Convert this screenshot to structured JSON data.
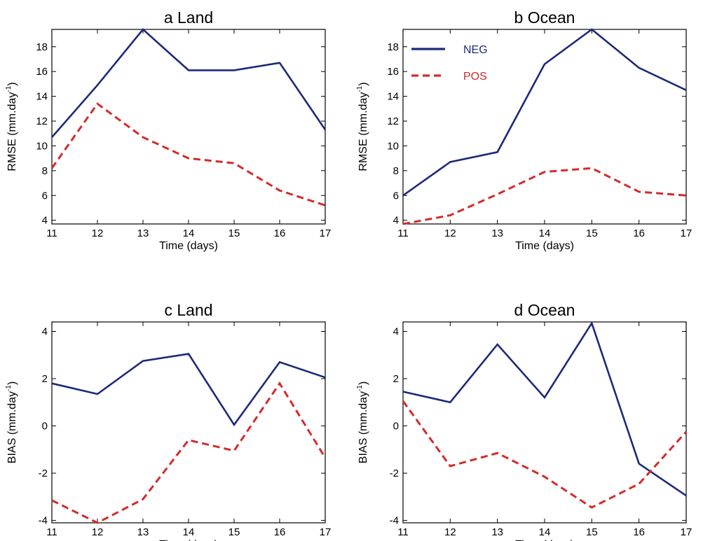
{
  "chart_data": [
    {
      "type": "line",
      "title": "a  Land",
      "xlabel": "Time (days)",
      "ylabel": "RMSE (mm.day",
      "ylabel_sup": "-1",
      "ylabel_close": ")",
      "x": [
        11,
        12,
        13,
        14,
        15,
        16,
        17
      ],
      "xlim": [
        11,
        17
      ],
      "ylim": [
        3.7,
        19.4
      ],
      "yticks": [
        4,
        6,
        8,
        10,
        12,
        14,
        16,
        18
      ],
      "series": [
        {
          "name": "NEG",
          "color": "#1c2a7a",
          "dash": "solid",
          "values": [
            10.7,
            14.9,
            19.4,
            16.1,
            16.1,
            16.7,
            11.3
          ]
        },
        {
          "name": "POS",
          "color": "#d42a2a",
          "dash": "dashed",
          "values": [
            8.2,
            13.4,
            10.7,
            9.0,
            8.6,
            6.4,
            5.2
          ]
        }
      ],
      "legend": null
    },
    {
      "type": "line",
      "title": "b  Ocean",
      "xlabel": "Time (days)",
      "ylabel": "RMSE (mm.day",
      "ylabel_sup": "-1",
      "ylabel_close": ")",
      "x": [
        11,
        12,
        13,
        14,
        15,
        16,
        17
      ],
      "xlim": [
        11,
        17
      ],
      "ylim": [
        3.7,
        19.4
      ],
      "yticks": [
        4,
        6,
        8,
        10,
        12,
        14,
        16,
        18
      ],
      "series": [
        {
          "name": "NEG",
          "color": "#1c2a7a",
          "dash": "solid",
          "values": [
            6.0,
            8.7,
            9.5,
            16.6,
            19.4,
            16.3,
            14.5
          ]
        },
        {
          "name": "POS",
          "color": "#d42a2a",
          "dash": "dashed",
          "values": [
            3.7,
            4.4,
            6.1,
            7.9,
            8.2,
            6.3,
            6.0
          ]
        }
      ],
      "legend": {
        "placement": "top-left",
        "entries": [
          {
            "label": "NEG",
            "color": "#1c2a7a",
            "dash": "solid"
          },
          {
            "label": "POS",
            "color": "#d42a2a",
            "dash": "dashed"
          }
        ]
      }
    },
    {
      "type": "line",
      "title": "c  Land",
      "xlabel": "Time (days)",
      "ylabel": "BIAS (mm.day",
      "ylabel_sup": "-1",
      "ylabel_close": ")",
      "x": [
        11,
        12,
        13,
        14,
        15,
        16,
        17
      ],
      "xlim": [
        11,
        17
      ],
      "ylim": [
        -4.1,
        4.4
      ],
      "yticks": [
        -4,
        -2,
        0,
        2,
        4
      ],
      "series": [
        {
          "name": "NEG",
          "color": "#1c2a7a",
          "dash": "solid",
          "values": [
            1.8,
            1.35,
            2.75,
            3.05,
            0.05,
            2.7,
            2.05
          ]
        },
        {
          "name": "POS",
          "color": "#d42a2a",
          "dash": "dashed",
          "values": [
            -3.15,
            -4.1,
            -3.1,
            -0.6,
            -1.05,
            1.8,
            -1.35
          ]
        }
      ],
      "legend": null
    },
    {
      "type": "line",
      "title": "d  Ocean",
      "xlabel": "Time (days)",
      "ylabel": "BIAS (mm.day",
      "ylabel_sup": "-1",
      "ylabel_close": ")",
      "x": [
        11,
        12,
        13,
        14,
        15,
        16,
        17
      ],
      "xlim": [
        11,
        17
      ],
      "ylim": [
        -4.1,
        4.4
      ],
      "yticks": [
        -4,
        -2,
        0,
        2,
        4
      ],
      "series": [
        {
          "name": "NEG",
          "color": "#1c2a7a",
          "dash": "solid",
          "values": [
            1.45,
            1.0,
            3.45,
            1.2,
            4.35,
            -1.6,
            -2.95
          ]
        },
        {
          "name": "POS",
          "color": "#d42a2a",
          "dash": "dashed",
          "values": [
            1.05,
            -1.7,
            -1.15,
            -2.15,
            -3.45,
            -2.45,
            -0.25
          ]
        }
      ],
      "legend": null
    }
  ]
}
